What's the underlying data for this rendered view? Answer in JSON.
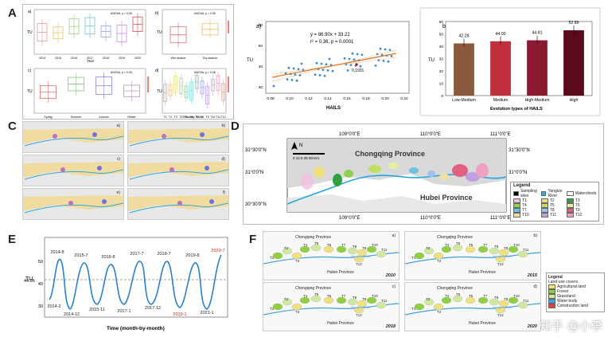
{
  "panels": {
    "A": {
      "letter": "A",
      "a": {
        "sub": "a)",
        "stat": "ANOVA, p > 0.05",
        "ylabel": "TU",
        "xlabel": "Year",
        "categories": [
          "2014",
          "2015",
          "2016",
          "2017",
          "2018",
          "2019",
          "2020"
        ],
        "colors": [
          "#e69a9a",
          "#e6c46a",
          "#9ad17a",
          "#6ac6c6",
          "#8fa6e6",
          "#d08ae0",
          "#e05050"
        ]
      },
      "b": {
        "sub": "b)",
        "stat": "ANOVA, p < 0.05",
        "ylabel": "TU",
        "categories": [
          "Wet season",
          "Dry season"
        ],
        "colors": [
          "#e07070",
          "#f0c070"
        ]
      },
      "c": {
        "sub": "c)",
        "stat": "ANOVA, p < 0.05",
        "ylabel": "TU",
        "categories": [
          "Spring",
          "Summer",
          "Autumn",
          "Winter"
        ],
        "colors": [
          "#e07070",
          "#7ad07a",
          "#8a8ae0",
          "#d08ad0"
        ]
      },
      "d": {
        "sub": "d)",
        "stat": "ANOVA, p < 0.05",
        "ylabel": "TU",
        "xlabel": "Tributary Sites",
        "categories": [
          "T1",
          "T2",
          "T3",
          "T4",
          "T5",
          "T6",
          "T7",
          "T8",
          "T9",
          "T10",
          "T11",
          "T12"
        ],
        "colors": [
          "#f0a0a0",
          "#f0c080",
          "#e0e080",
          "#b0e080",
          "#80e0a0",
          "#80e0e0",
          "#80c0f0",
          "#a0a0f0",
          "#c0a0f0",
          "#e0a0e0",
          "#f0a0c0",
          "#d0b0a0"
        ]
      }
    },
    "B": {
      "letter": "B",
      "scatter": {
        "sub": "a)",
        "eq1": "y = 86.90x + 33.22",
        "eq2": "r² = 0.36, p = 0.0001",
        "ylabel": "TU",
        "xlabel": "HAILS",
        "annotation": "0.1931",
        "xticks": [
          "0.08",
          "0.10",
          "0.12",
          "0.14",
          "0.16",
          "0.18",
          "0.20",
          "0.22"
        ],
        "yticks": [
          "30",
          "40",
          "50",
          "60"
        ]
      },
      "bars": {
        "sub": "b)",
        "ylabel": "TU",
        "xlabel": "Evolution types of HAILS",
        "categories": [
          "Low-Medium",
          "Medium",
          "High-Medium",
          "High"
        ],
        "value_labels": [
          "42.28",
          "44.00",
          "44.81",
          "52.89"
        ],
        "colors": [
          "#8b5a3c",
          "#c0303a",
          "#8a1a30",
          "#5a0a1a"
        ],
        "yticks": [
          "0",
          "10",
          "20",
          "30",
          "40",
          "50",
          "60"
        ]
      }
    },
    "C": {
      "letter": "C",
      "cells": [
        "a)",
        "b)",
        "c)",
        "d)",
        "e)",
        "f)"
      ]
    },
    "D": {
      "letter": "D",
      "lon_top": [
        "109°0'0\"E",
        "110°0'0\"E",
        "111°0'0\"E"
      ],
      "lon_bottom": [
        "109°0'0\"E",
        "110°0'0\"E",
        "111°0'0\"E"
      ],
      "lat_left": [
        "31°30'0\"N",
        "31°0'0\"N",
        "30°30'0\"N"
      ],
      "lat_right": [
        "31°30'0\"N",
        "31°0'0\"N"
      ],
      "north": "N",
      "scale_label": "0 12.5 25    50 Km",
      "province_cq": "Chongqing Province",
      "province_hb": "Hubei Province",
      "legend": {
        "title": "Legend",
        "items": [
          {
            "label": "Sampling sites",
            "color": "#000000"
          },
          {
            "label": "Yangtze River",
            "color": "#30b0e0"
          },
          {
            "label": "Watersheds",
            "color": "#ffffff"
          },
          {
            "label": "T1",
            "color": "#f0c0e0"
          },
          {
            "label": "T2",
            "color": "#f0e070"
          },
          {
            "label": "T3",
            "color": "#30a040"
          },
          {
            "label": "T4",
            "color": "#90d050"
          },
          {
            "label": "T5",
            "color": "#c0e060"
          },
          {
            "label": "T6",
            "color": "#e8f0a0"
          },
          {
            "label": "T7",
            "color": "#70c0e0"
          },
          {
            "label": "T8",
            "color": "#a0c0f0"
          },
          {
            "label": "T9",
            "color": "#e06080"
          },
          {
            "label": "T10",
            "color": "#f0e0a0"
          },
          {
            "label": "T11",
            "color": "#c0a0e0"
          },
          {
            "label": "T12",
            "color": "#f0a0c0"
          }
        ]
      }
    },
    "E": {
      "letter": "E",
      "ylabel": "TU",
      "xlabel": "Time (month-by-month)",
      "baseline": "44.06",
      "yticks": [
        "30",
        "40",
        "50"
      ],
      "peaks": [
        "2014-8",
        "2015-7",
        "2016-8",
        "2017-7",
        "2018-7",
        "2019-8",
        "2020-7"
      ],
      "troughs": [
        "2014-2",
        "2014-12",
        "2015-11",
        "2017-1",
        "2017-12",
        "2019-1",
        "2021-1"
      ]
    },
    "F": {
      "letter": "F",
      "province_cq": "Chongqing Province",
      "province_hb": "Hubei Province",
      "river": "Yangtze River",
      "cells": [
        {
          "sub": "a)",
          "year": "2010"
        },
        {
          "sub": "b)",
          "year": "2015"
        },
        {
          "sub": "c)",
          "year": "2018"
        },
        {
          "sub": "d)",
          "year": "2020"
        }
      ],
      "tlabels": [
        "T1",
        "T2",
        "T3",
        "T4",
        "T5",
        "T6",
        "T7",
        "T8",
        "T9",
        "T10",
        "T11",
        "T12"
      ],
      "legend": {
        "title": "Legend",
        "subtitle": "Land-use covers",
        "items": [
          {
            "label": "Agricultural land",
            "color": "#f0e080"
          },
          {
            "label": "Forest",
            "color": "#90d040"
          },
          {
            "label": "Grassland",
            "color": "#d0e8a0"
          },
          {
            "label": "Water body",
            "color": "#40a0e0"
          },
          {
            "label": "Construction land",
            "color": "#e04040"
          }
        ]
      }
    }
  },
  "watermark": "知乎 @小李"
}
